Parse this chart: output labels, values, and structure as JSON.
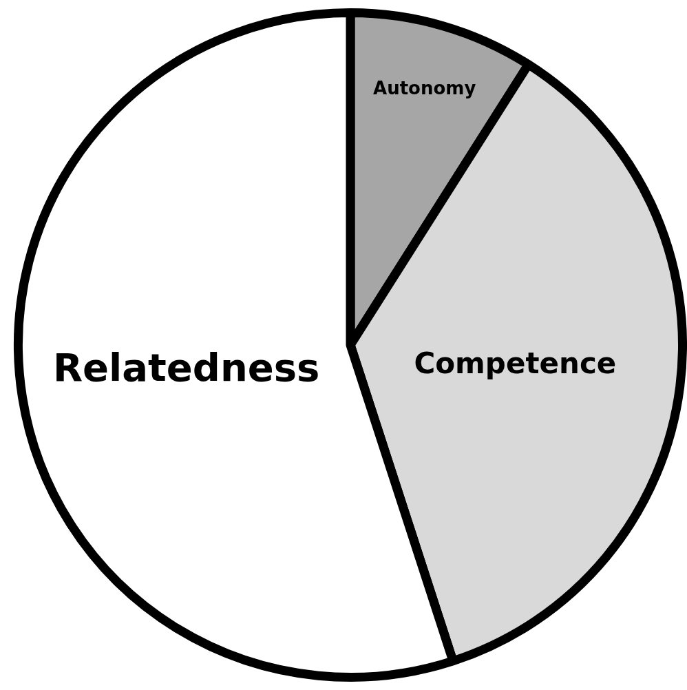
{
  "chart_data": {
    "type": "pie",
    "categories": [
      "Autonomy",
      "Competence",
      "Relatedness"
    ],
    "values": [
      9,
      36,
      55
    ],
    "colors": [
      "#a6a6a6",
      "#d9d9d9",
      "#ffffff"
    ],
    "legend": false
  }
}
